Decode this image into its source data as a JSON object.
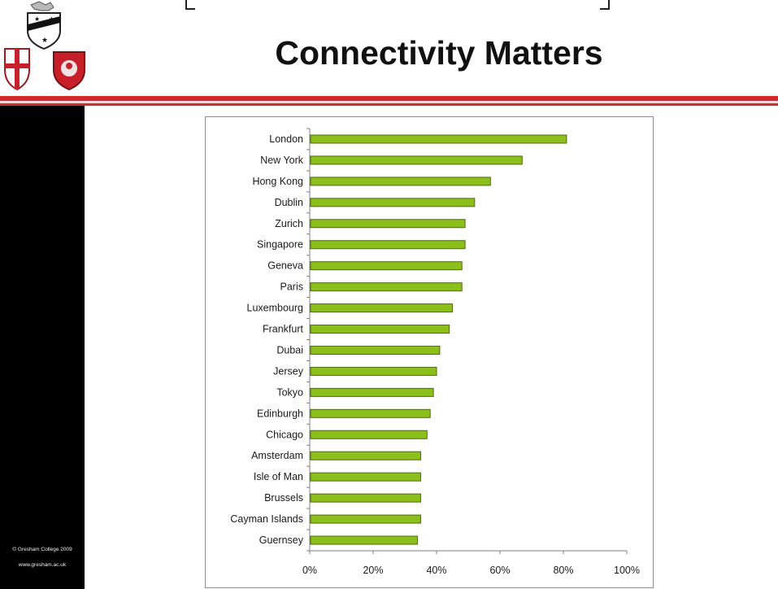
{
  "slide": {
    "title": "Connectivity Matters",
    "footer_copyright": "© Gresham College 2009",
    "footer_url": "www.gresham.ac.uk"
  },
  "colors": {
    "bar_fill": "#8cbf1c",
    "bar_stroke": "#4e6e08",
    "stripe_red": "#d12a2e",
    "sidebar": "#000000"
  },
  "chart_data": {
    "type": "bar",
    "orientation": "horizontal",
    "title": "",
    "xlabel": "",
    "ylabel": "",
    "categories": [
      "London",
      "New York",
      "Hong Kong",
      "Dublin",
      "Zurich",
      "Singapore",
      "Geneva",
      "Paris",
      "Luxembourg",
      "Frankfurt",
      "Dubai",
      "Jersey",
      "Tokyo",
      "Edinburgh",
      "Chicago",
      "Amsterdam",
      "Isle of Man",
      "Brussels",
      "Cayman Islands",
      "Guernsey"
    ],
    "values": [
      81,
      67,
      57,
      52,
      49,
      49,
      48,
      48,
      45,
      44,
      41,
      40,
      39,
      38,
      37,
      35,
      35,
      35,
      35,
      34
    ],
    "xlim": [
      0,
      100
    ],
    "xticks": [
      "0%",
      "20%",
      "40%",
      "60%",
      "80%",
      "100%"
    ],
    "grid": false,
    "legend": "none"
  }
}
